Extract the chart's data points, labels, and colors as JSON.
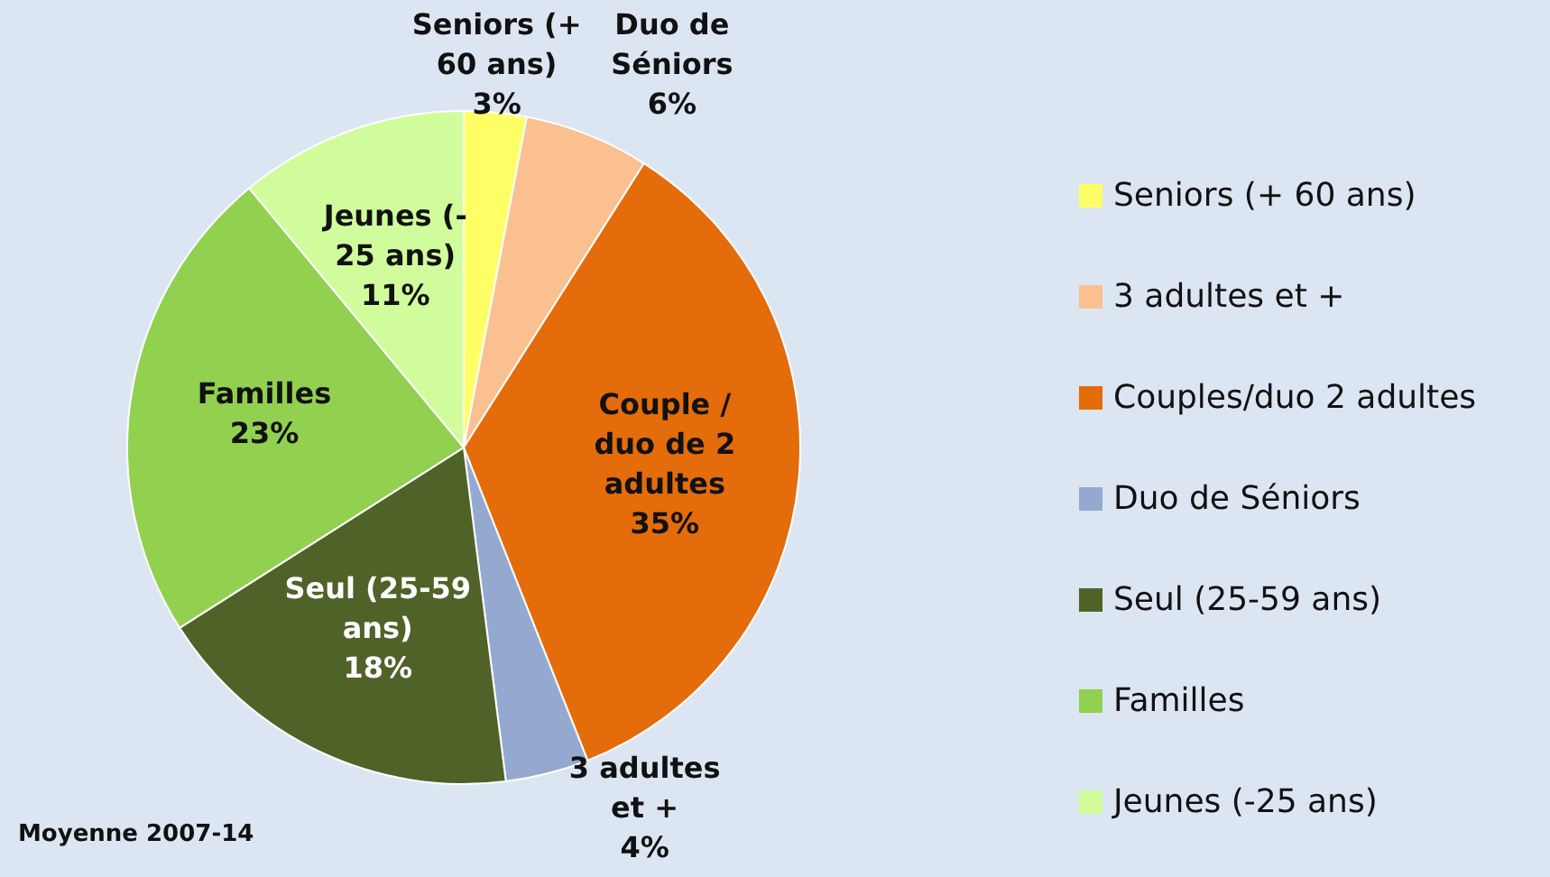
{
  "chart_data": {
    "type": "pie",
    "categories": [
      "Seniors (+ 60 ans)",
      "3 adultes et +",
      "Couples/duo 2 adultes",
      "Duo de Séniors",
      "Seul (25-59 ans)",
      "Familles",
      "Jeunes (-25 ans)"
    ],
    "values": [
      3,
      6,
      35,
      4,
      18,
      23,
      11
    ],
    "colors": [
      "#ffff66",
      "#fac090",
      "#e46c0a",
      "#95a9d0",
      "#4f6228",
      "#92d050",
      "#d1fc9c"
    ],
    "value_labels": [
      "Seniors (+\n60 ans)\n3%",
      "Duo de\nSéniors\n6%",
      "Couple /\nduo de 2\nadultes\n35%",
      "3 adultes\net +\n4%",
      "Seul (25-59\nans)\n18%",
      "Familles\n23%",
      "Jeunes (-\n25 ans)\n11%"
    ],
    "annotations": [
      "Moyenne 2007-14"
    ],
    "legend": "right"
  }
}
